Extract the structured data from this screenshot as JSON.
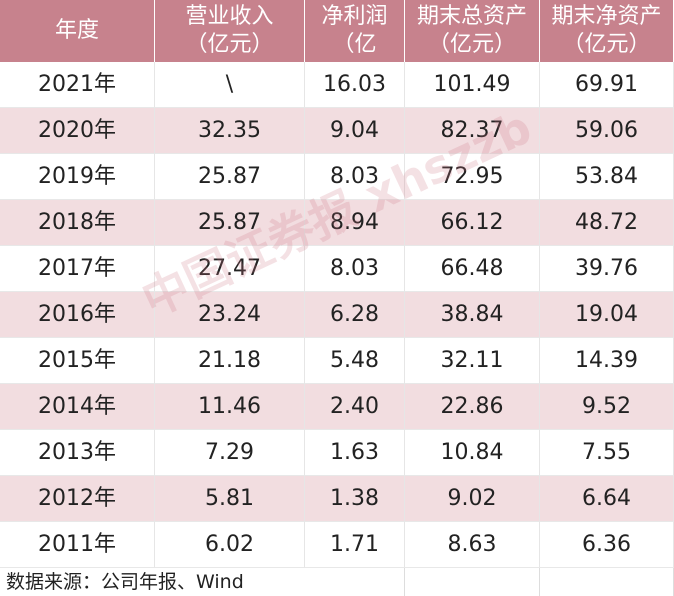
{
  "table": {
    "header": [
      [
        "年度"
      ],
      [
        "营业收入",
        "（亿元）"
      ],
      [
        "净利润",
        "（亿"
      ],
      [
        "期末总资产",
        "（亿元）"
      ],
      [
        "期末净资产",
        "（亿元）"
      ]
    ],
    "rows": [
      [
        "2021年",
        "\\",
        "16.03",
        "101.49",
        "69.91"
      ],
      [
        "2020年",
        "32.35",
        "9.04",
        "82.37",
        "59.06"
      ],
      [
        "2019年",
        "25.87",
        "8.03",
        "72.95",
        "53.84"
      ],
      [
        "2018年",
        "25.87",
        "8.94",
        "66.12",
        "48.72"
      ],
      [
        "2017年",
        "27.47",
        "8.03",
        "66.48",
        "39.76"
      ],
      [
        "2016年",
        "23.24",
        "6.28",
        "38.84",
        "19.04"
      ],
      [
        "2015年",
        "21.18",
        "5.48",
        "32.11",
        "14.39"
      ],
      [
        "2014年",
        "11.46",
        "2.40",
        "22.86",
        "9.52"
      ],
      [
        "2013年",
        "7.29",
        "1.63",
        "10.84",
        "7.55"
      ],
      [
        "2012年",
        "5.81",
        "1.38",
        "9.02",
        "6.64"
      ],
      [
        "2011年",
        "6.02",
        "1.71",
        "8.63",
        "6.36"
      ]
    ],
    "source": "数据来源：公司年报、Wind"
  },
  "watermark": "中国证券报 xhszzb"
}
